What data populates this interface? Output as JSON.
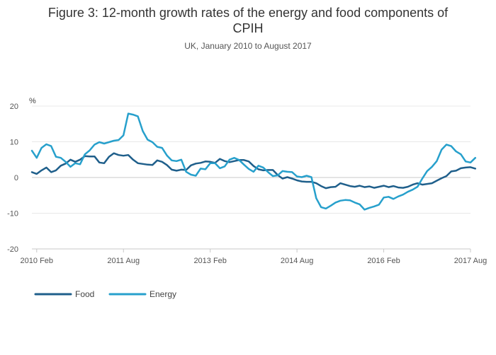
{
  "chart_data": {
    "type": "line",
    "title_lines": [
      "Figure 3: 12-month growth rates of the energy and food components of",
      "CPIH"
    ],
    "subtitle": "UK, January 2010 to August 2017",
    "ylabel": "%",
    "ylim": [
      -20,
      20
    ],
    "y_ticks": [
      -20,
      -10,
      0,
      10,
      20
    ],
    "x_range": [
      "2010-01",
      "2017-08"
    ],
    "x_ticks": [
      {
        "label": "2010 Feb",
        "date": "2010-02"
      },
      {
        "label": "2011 Aug",
        "date": "2011-08"
      },
      {
        "label": "2013 Feb",
        "date": "2013-02"
      },
      {
        "label": "2014 Aug",
        "date": "2014-08"
      },
      {
        "label": "2016 Feb",
        "date": "2016-02"
      },
      {
        "label": "2017 Aug",
        "date": "2017-08"
      }
    ],
    "grid": true,
    "legend_position": "bottom-left",
    "series": [
      {
        "name": "Food",
        "color": "#1f5f8b",
        "start": "2010-01",
        "values": [
          1.5,
          1.0,
          2.0,
          2.8,
          1.5,
          2.0,
          3.3,
          3.9,
          5.0,
          4.4,
          5.0,
          6.0,
          5.9,
          5.9,
          4.2,
          4.0,
          5.8,
          6.8,
          6.3,
          6.1,
          6.3,
          5.0,
          4.0,
          3.8,
          3.6,
          3.5,
          4.8,
          4.4,
          3.5,
          2.2,
          1.9,
          2.2,
          2.1,
          3.4,
          3.9,
          4.1,
          4.5,
          4.4,
          4.1,
          5.2,
          4.6,
          4.3,
          4.6,
          4.9,
          4.9,
          4.5,
          3.2,
          2.3,
          2.0,
          2.1,
          2.1,
          0.7,
          -0.3,
          0.1,
          -0.3,
          -0.8,
          -1.1,
          -1.2,
          -1.2,
          -1.6,
          -2.4,
          -3.0,
          -2.7,
          -2.6,
          -1.6,
          -2.0,
          -2.4,
          -2.6,
          -2.3,
          -2.7,
          -2.5,
          -2.9,
          -2.6,
          -2.3,
          -2.7,
          -2.4,
          -2.8,
          -2.9,
          -2.6,
          -2.0,
          -1.6,
          -2.0,
          -1.8,
          -1.6,
          -0.9,
          -0.2,
          0.4,
          1.7,
          1.9,
          2.6,
          2.8,
          2.9,
          2.5
        ]
      },
      {
        "name": "Energy",
        "color": "#27a0cc",
        "start": "2010-01",
        "values": [
          7.5,
          5.5,
          8.3,
          9.3,
          8.8,
          5.8,
          5.5,
          4.4,
          3.0,
          4.0,
          3.7,
          6.5,
          7.6,
          9.2,
          9.9,
          9.5,
          9.9,
          10.3,
          10.5,
          11.8,
          17.9,
          17.6,
          17.1,
          13.0,
          10.6,
          9.9,
          8.6,
          8.3,
          6.2,
          4.8,
          4.6,
          5.0,
          1.6,
          0.8,
          0.5,
          2.5,
          2.3,
          4.0,
          4.0,
          2.6,
          3.1,
          5.0,
          5.5,
          4.9,
          3.6,
          2.4,
          1.6,
          3.3,
          2.8,
          1.5,
          0.4,
          0.6,
          1.8,
          1.6,
          1.5,
          0.3,
          0.1,
          0.5,
          0.1,
          -5.8,
          -8.3,
          -8.7,
          -7.9,
          -7.0,
          -6.5,
          -6.3,
          -6.4,
          -7.0,
          -7.5,
          -9.0,
          -8.5,
          -8.1,
          -7.6,
          -5.6,
          -5.4,
          -6.0,
          -5.3,
          -4.8,
          -4.0,
          -3.4,
          -2.6,
          -0.3,
          1.8,
          3.0,
          4.6,
          7.8,
          9.2,
          8.8,
          7.3,
          6.5,
          4.5,
          4.2,
          5.5
        ]
      }
    ]
  }
}
